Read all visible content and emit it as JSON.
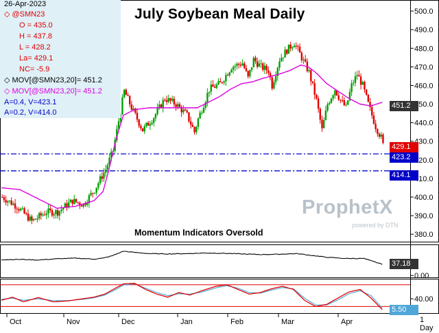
{
  "legend": {
    "date": "26-Apr-2023",
    "symbol": "@SMN23",
    "open": "O = 435.0",
    "high": "H = 437.8",
    "low": "L = 428.2",
    "last": "La= 429.1",
    "net_change": "NC= -5.9",
    "mov_black": "MOV[@SMN23,20]= 451.2",
    "mov_magenta": "MOV[@SMN23,20]= 451.2",
    "line_a": "A=0.4, V=423.1",
    "line_b": "A=0.2, V=414.0"
  },
  "title": "July Soybean Meal Daily",
  "annotation": "Momentum Indicators Oversold",
  "watermark": {
    "brand": "ProphetX",
    "sub": "powered by DTN"
  },
  "price_tags": {
    "mov": "451.2",
    "last": "429.1",
    "line_a": "423.2",
    "line_b": "414.1"
  },
  "indicator_tags": {
    "panel1": "37.18",
    "panel2": "5.50"
  },
  "period_label": "1 Day",
  "colors": {
    "up": "#00a000",
    "down": "#e00000",
    "ma": "#e000e0",
    "trend": "#0000c8",
    "k": "#e00000",
    "d": "#4fa7d8"
  },
  "chart_data": [
    {
      "type": "candlestick",
      "title": "July Soybean Meal Daily",
      "ylim": [
        376,
        503
      ],
      "yticks": [
        380,
        390,
        400,
        410,
        420,
        430,
        440,
        450,
        460,
        470,
        480,
        490,
        500
      ],
      "ytick_labels": [
        "380.0",
        "390.0",
        "400.0",
        "410.0",
        "420.0",
        "430.0",
        "440.0",
        "450.0",
        "460.0",
        "470.0",
        "480.0",
        "490.0",
        "500.0"
      ],
      "x_labels": [
        "Oct",
        "Nov",
        "Dec",
        "Jan",
        "Feb",
        "Mar",
        "Apr"
      ],
      "price_path": [
        [
          0,
          400
        ],
        [
          8,
          395
        ],
        [
          16,
          387
        ],
        [
          24,
          392
        ],
        [
          30,
          392
        ],
        [
          38,
          398
        ],
        [
          44,
          396
        ],
        [
          50,
          404
        ],
        [
          56,
          415
        ],
        [
          60,
          425
        ],
        [
          63,
          441
        ],
        [
          66,
          457
        ],
        [
          70,
          448
        ],
        [
          76,
          436
        ],
        [
          82,
          443
        ],
        [
          88,
          453
        ],
        [
          94,
          450
        ],
        [
          100,
          444
        ],
        [
          104,
          435
        ],
        [
          106,
          442
        ],
        [
          112,
          458
        ],
        [
          118,
          461
        ],
        [
          124,
          470
        ],
        [
          130,
          472
        ],
        [
          133,
          464
        ],
        [
          136,
          474
        ],
        [
          140,
          470
        ],
        [
          144,
          468
        ],
        [
          146,
          460
        ],
        [
          150,
          474
        ],
        [
          154,
          479
        ],
        [
          158,
          483
        ],
        [
          162,
          475
        ],
        [
          166,
          467
        ],
        [
          170,
          452
        ],
        [
          173,
          436
        ],
        [
          176,
          450
        ],
        [
          180,
          458
        ],
        [
          183,
          452
        ],
        [
          186,
          448
        ],
        [
          189,
          460
        ],
        [
          192,
          466
        ],
        [
          195,
          460
        ],
        [
          198,
          450
        ],
        [
          202,
          438
        ],
        [
          206,
          430
        ]
      ],
      "moving_average": {
        "name": "MOV[@SMN23,20]",
        "value": 451.2,
        "path": [
          [
            0,
            405
          ],
          [
            10,
            404
          ],
          [
            20,
            399
          ],
          [
            30,
            394
          ],
          [
            40,
            395
          ],
          [
            50,
            398
          ],
          [
            55,
            403
          ],
          [
            58,
            414
          ],
          [
            62,
            431
          ],
          [
            66,
            444
          ],
          [
            72,
            447
          ],
          [
            80,
            448
          ],
          [
            90,
            448
          ],
          [
            100,
            448
          ],
          [
            106,
            448
          ],
          [
            112,
            451
          ],
          [
            118,
            454
          ],
          [
            124,
            458
          ],
          [
            130,
            461
          ],
          [
            136,
            462
          ],
          [
            142,
            464
          ],
          [
            150,
            466
          ],
          [
            156,
            468
          ],
          [
            162,
            471
          ],
          [
            166,
            470
          ],
          [
            170,
            467
          ],
          [
            176,
            461
          ],
          [
            182,
            457
          ],
          [
            188,
            453
          ],
          [
            194,
            450
          ],
          [
            200,
            449
          ],
          [
            206,
            451
          ]
        ]
      },
      "lines": [
        {
          "label": "A=0.4, V=423.1",
          "value": 423.2
        },
        {
          "label": "A=0.2, V=414.0",
          "value": 414.1
        }
      ],
      "last": 429.1
    },
    {
      "type": "line",
      "value": 37.18,
      "ylim": [
        -4,
        100
      ],
      "yticks": [
        0
      ],
      "ytick_labels": [
        "0.00"
      ],
      "series": [
        {
          "values": [
            [
              0,
              52
            ],
            [
              10,
              53
            ],
            [
              20,
              51
            ],
            [
              30,
              55
            ],
            [
              40,
              57
            ],
            [
              50,
              54
            ],
            [
              55,
              57
            ],
            [
              60,
              65
            ],
            [
              66,
              80
            ],
            [
              72,
              76
            ],
            [
              80,
              72
            ],
            [
              90,
              71
            ],
            [
              100,
              72
            ],
            [
              110,
              74
            ],
            [
              120,
              73
            ],
            [
              130,
              71
            ],
            [
              140,
              69
            ],
            [
              150,
              70
            ],
            [
              160,
              72
            ],
            [
              168,
              66
            ],
            [
              176,
              60
            ],
            [
              186,
              56
            ],
            [
              196,
              56
            ],
            [
              206,
              37
            ]
          ]
        }
      ]
    },
    {
      "type": "line",
      "ylim": [
        -4,
        100
      ],
      "yticks": [
        40
      ],
      "ytick_labels": [
        "40.00"
      ],
      "series": [
        {
          "values": [
            [
              0,
              35
            ],
            [
              6,
              45
            ],
            [
              12,
              30
            ],
            [
              20,
              44
            ],
            [
              28,
              30
            ],
            [
              36,
              33
            ],
            [
              44,
              40
            ],
            [
              50,
              45
            ],
            [
              56,
              55
            ],
            [
              62,
              75
            ],
            [
              66,
              88
            ],
            [
              72,
              90
            ],
            [
              78,
              70
            ],
            [
              84,
              55
            ],
            [
              90,
              45
            ],
            [
              96,
              60
            ],
            [
              102,
              52
            ],
            [
              108,
              65
            ],
            [
              116,
              80
            ],
            [
              122,
              85
            ],
            [
              128,
              70
            ],
            [
              134,
              55
            ],
            [
              140,
              60
            ],
            [
              146,
              72
            ],
            [
              152,
              80
            ],
            [
              158,
              70
            ],
            [
              164,
              35
            ],
            [
              170,
              15
            ],
            [
              176,
              22
            ],
            [
              182,
              42
            ],
            [
              188,
              62
            ],
            [
              194,
              70
            ],
            [
              200,
              42
            ],
            [
              206,
              5
            ]
          ]
        },
        {
          "values": [
            [
              0,
              38
            ],
            [
              6,
              42
            ],
            [
              12,
              35
            ],
            [
              20,
              40
            ],
            [
              28,
              34
            ],
            [
              36,
              34
            ],
            [
              44,
              38
            ],
            [
              50,
              43
            ],
            [
              56,
              52
            ],
            [
              62,
              70
            ],
            [
              66,
              84
            ],
            [
              72,
              88
            ],
            [
              78,
              74
            ],
            [
              84,
              60
            ],
            [
              90,
              50
            ],
            [
              96,
              56
            ],
            [
              102,
              55
            ],
            [
              108,
              61
            ],
            [
              116,
              75
            ],
            [
              122,
              82
            ],
            [
              128,
              74
            ],
            [
              134,
              60
            ],
            [
              140,
              58
            ],
            [
              146,
              68
            ],
            [
              152,
              76
            ],
            [
              158,
              72
            ],
            [
              164,
              42
            ],
            [
              170,
              20
            ],
            [
              176,
              20
            ],
            [
              182,
              36
            ],
            [
              188,
              56
            ],
            [
              194,
              66
            ],
            [
              200,
              50
            ],
            [
              206,
              10
            ]
          ]
        }
      ]
    }
  ]
}
